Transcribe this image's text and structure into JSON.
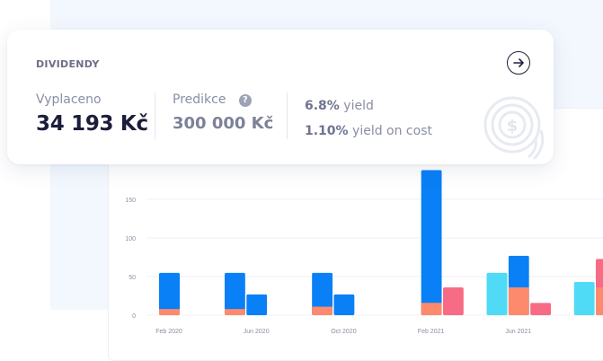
{
  "card": {
    "title": "DIVIDENDY",
    "paid_label": "Vyplaceno",
    "paid_value": "34 193 Kč",
    "prediction_label": "Predikce",
    "prediction_value": "300 000 Kč",
    "yield_pct": "6.8%",
    "yield_label": "yield",
    "yoc_pct": "1.10%",
    "yoc_label": "yield on cost",
    "icons": [
      "arrow-right-icon",
      "help-icon",
      "coin-icon"
    ]
  },
  "chart_data": {
    "type": "bar",
    "y_ticks": [
      "0",
      "50",
      "100",
      "150"
    ],
    "x_ticks": [
      "Feb 2020",
      "Jun 2020",
      "Oct 2020",
      "Feb 2021",
      "Jun 2021"
    ],
    "ylim": [
      0,
      190
    ],
    "grid": true,
    "bars": [
      {
        "month": "Feb 2020",
        "total": 55,
        "part": 8,
        "color": "#0a80f6"
      },
      {
        "month": "May 2020",
        "total": 55,
        "part": 8,
        "color": "#0a80f6"
      },
      {
        "month": "Jun 2020",
        "total": 27,
        "part": 0,
        "color": "#0a80f6"
      },
      {
        "month": "Sep 2020",
        "total": 55,
        "part": 11,
        "color": "#0a80f6"
      },
      {
        "month": "Oct 2020",
        "total": 27,
        "part": 0,
        "color": "#0a80f6"
      },
      {
        "month": "Feb 2021",
        "total": 188,
        "part": 16,
        "color": "#0a80f6"
      },
      {
        "month": "Mar 2021",
        "total": 36,
        "part": 0,
        "color": "#f76b84"
      },
      {
        "month": "May 2021",
        "total": 55,
        "part": 0,
        "color": "#4fdbf5"
      },
      {
        "month": "Jun 2021",
        "total": 77,
        "part": 36,
        "color": "#0a80f6"
      },
      {
        "month": "Jul 2021",
        "total": 16,
        "part": 0,
        "color": "#f76b84"
      },
      {
        "month": "Sep 2021",
        "total": 43,
        "part": 0,
        "color": "#4fdbf5"
      },
      {
        "month": "Oct 2021",
        "total": 73,
        "part": 36,
        "color": "#f76b84"
      }
    ],
    "part_color": "#fd8a6d"
  }
}
